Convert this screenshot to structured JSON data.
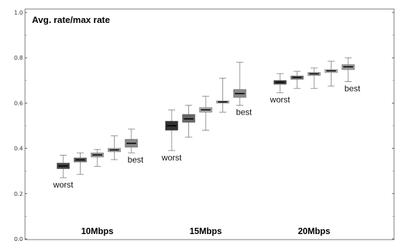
{
  "chart_data": {
    "type": "boxplot",
    "title": "Avg. rate/max rate",
    "xlabel": "",
    "ylabel": "",
    "ylim": [
      0,
      1.0
    ],
    "yticks": [
      0.0,
      0.2,
      0.4,
      0.6,
      0.8,
      1.0
    ],
    "ytick_labels": [
      "0.0",
      "0.2",
      "0.4",
      "0.6",
      "0.8",
      "1.0"
    ],
    "grid": false,
    "groups": [
      {
        "label": "10Mbps",
        "boxes": [
          {
            "min": 0.27,
            "q1": 0.31,
            "median": 0.322,
            "q3": 0.335,
            "max": 0.37,
            "shade": "#444444"
          },
          {
            "min": 0.285,
            "q1": 0.34,
            "median": 0.349,
            "q3": 0.358,
            "max": 0.38,
            "shade": "#666666"
          },
          {
            "min": 0.32,
            "q1": 0.362,
            "median": 0.371,
            "q3": 0.38,
            "max": 0.395,
            "shade": "#999999"
          },
          {
            "min": 0.35,
            "q1": 0.385,
            "median": 0.393,
            "q3": 0.4,
            "max": 0.455,
            "shade": "#aaaaaa"
          },
          {
            "min": 0.38,
            "q1": 0.405,
            "median": 0.422,
            "q3": 0.44,
            "max": 0.485,
            "shade": "#888888"
          }
        ],
        "annotations": [
          {
            "text": "worst",
            "box": 0
          },
          {
            "text": "best",
            "box": 4
          }
        ]
      },
      {
        "label": "15Mbps",
        "boxes": [
          {
            "min": 0.39,
            "q1": 0.48,
            "median": 0.5,
            "q3": 0.52,
            "max": 0.57,
            "shade": "#333333"
          },
          {
            "min": 0.45,
            "q1": 0.515,
            "median": 0.53,
            "q3": 0.55,
            "max": 0.59,
            "shade": "#666666"
          },
          {
            "min": 0.48,
            "q1": 0.56,
            "median": 0.57,
            "q3": 0.58,
            "max": 0.63,
            "shade": "#aaaaaa"
          },
          {
            "min": 0.56,
            "q1": 0.6,
            "median": 0.605,
            "q3": 0.61,
            "max": 0.71,
            "shade": "#bbbbbb"
          },
          {
            "min": 0.59,
            "q1": 0.625,
            "median": 0.642,
            "q3": 0.66,
            "max": 0.78,
            "shade": "#888888"
          }
        ],
        "annotations": [
          {
            "text": "worst",
            "box": 0
          },
          {
            "text": "best",
            "box": 4
          }
        ]
      },
      {
        "label": "20Mbps",
        "boxes": [
          {
            "min": 0.645,
            "q1": 0.683,
            "median": 0.692,
            "q3": 0.7,
            "max": 0.73,
            "shade": "#444444"
          },
          {
            "min": 0.665,
            "q1": 0.705,
            "median": 0.713,
            "q3": 0.72,
            "max": 0.74,
            "shade": "#777777"
          },
          {
            "min": 0.665,
            "q1": 0.722,
            "median": 0.729,
            "q3": 0.735,
            "max": 0.755,
            "shade": "#aaaaaa"
          },
          {
            "min": 0.675,
            "q1": 0.735,
            "median": 0.742,
            "q3": 0.748,
            "max": 0.785,
            "shade": "#bbbbbb"
          },
          {
            "min": 0.695,
            "q1": 0.748,
            "median": 0.76,
            "q3": 0.77,
            "max": 0.8,
            "shade": "#999999"
          }
        ],
        "annotations": [
          {
            "text": "worst",
            "box": 0
          },
          {
            "text": "best",
            "box": 4
          }
        ]
      }
    ]
  }
}
